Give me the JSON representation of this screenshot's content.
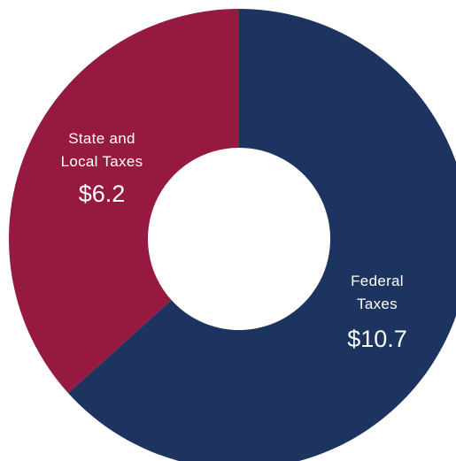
{
  "chart_data": {
    "type": "pie",
    "style": "donut",
    "title": "",
    "categories": [
      "Federal Taxes",
      "State and Local Taxes"
    ],
    "values": [
      10.7,
      6.2
    ],
    "value_labels": [
      "$10.7",
      "$6.2"
    ],
    "label_lines": [
      [
        "Federal",
        "Taxes"
      ],
      [
        "State and",
        "Local Taxes"
      ]
    ],
    "colors": [
      "#1d3461",
      "#961a3f"
    ],
    "start": "12 o'clock",
    "direction": "clockwise",
    "legend": "none",
    "label_color": "#ffffff"
  }
}
